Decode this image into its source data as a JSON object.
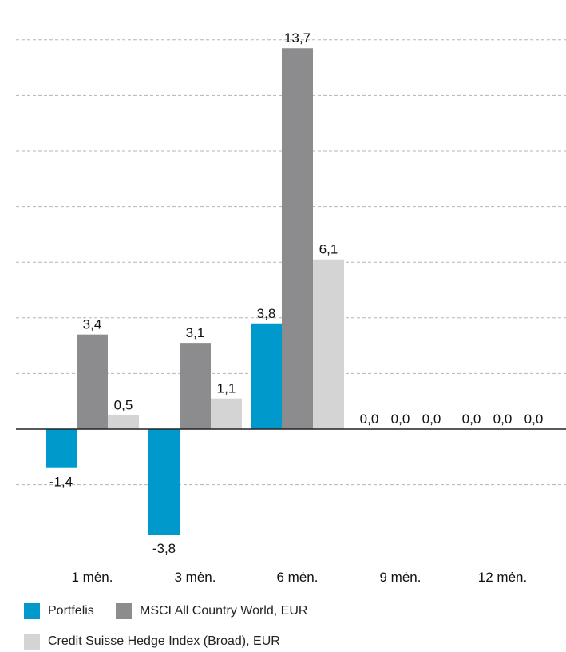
{
  "chart_data": {
    "type": "bar",
    "categories": [
      "1 mėn.",
      "3 mėn.",
      "6 mėn.",
      "9 mėn.",
      "12 mėn."
    ],
    "series": [
      {
        "name": "Portfelis",
        "color": "#0099cc",
        "values": [
          -1.4,
          -3.8,
          3.8,
          0.0,
          0.0
        ]
      },
      {
        "name": "MSCI All Country World, EUR",
        "color": "#8c8c8e",
        "values": [
          3.4,
          3.1,
          13.7,
          0.0,
          0.0
        ]
      },
      {
        "name": "Credit Suisse Hedge Index (Broad), EUR",
        "color": "#d4d4d4",
        "values": [
          0.5,
          1.1,
          6.1,
          0.0,
          0.0
        ]
      }
    ],
    "value_labels": [
      [
        "-1,4",
        "-3,8",
        "3,8",
        "0,0",
        "0,0"
      ],
      [
        "3,4",
        "3,1",
        "13,7",
        "0,0",
        "0,0"
      ],
      [
        "0,5",
        "1,1",
        "6,1",
        "0,0",
        "0,0"
      ]
    ],
    "ylim": [
      -5,
      15
    ],
    "grid": true,
    "legend_position": "bottom-left"
  }
}
